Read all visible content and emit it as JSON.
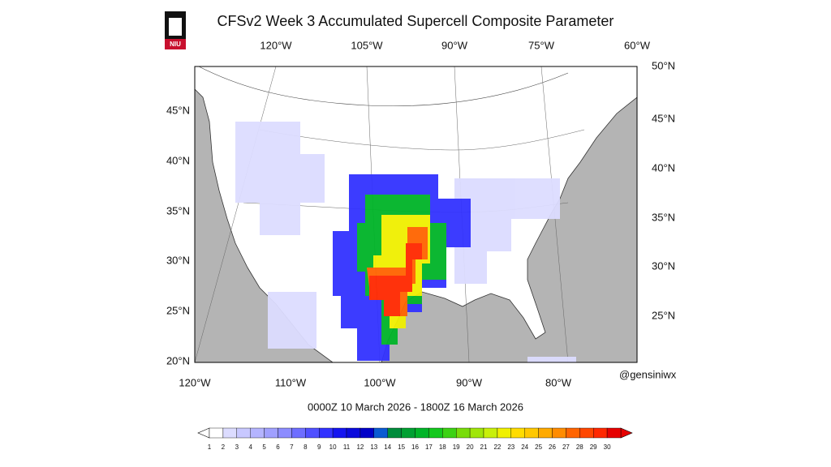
{
  "header": {
    "logo": "NIU",
    "title": "CFSv2 Week 3 Accumulated Supercell Composite Parameter"
  },
  "map": {
    "top_labels": [
      "120°W",
      "105°W",
      "90°W",
      "75°W",
      "60°W"
    ],
    "left_labels": [
      "45°N",
      "40°N",
      "35°N",
      "30°N",
      "25°N",
      "20°N"
    ],
    "right_labels": [
      "50°N",
      "45°N",
      "40°N",
      "35°N",
      "30°N",
      "25°N"
    ],
    "bottom_labels": [
      "120°W",
      "110°W",
      "100°W",
      "90°W",
      "80°W"
    ],
    "credit": "@gensiniwx",
    "valid_period": "0000Z 10  March  2026  - 1800Z 16  March  2026"
  },
  "colorbar": {
    "labels": [
      1,
      2,
      3,
      4,
      5,
      6,
      7,
      8,
      9,
      10,
      11,
      12,
      13,
      14,
      15,
      16,
      17,
      18,
      19,
      20,
      21,
      22,
      23,
      24,
      25,
      26,
      27,
      28,
      29,
      30
    ],
    "colors": [
      "#ffffff",
      "#dcdcff",
      "#c8c8ff",
      "#b4b4ff",
      "#a0a0ff",
      "#8c8cff",
      "#6e6eff",
      "#5050ff",
      "#3232ff",
      "#1414f0",
      "#0a0adc",
      "#0000c8",
      "#0a5ad2",
      "#008c3c",
      "#00a032",
      "#00b428",
      "#14c81e",
      "#3cd214",
      "#78dc0a",
      "#a0e60a",
      "#c8f00a",
      "#f0f000",
      "#ffdc00",
      "#ffc800",
      "#ffaa00",
      "#ff8c00",
      "#ff6400",
      "#ff4600",
      "#ff2800",
      "#e60000"
    ]
  }
}
